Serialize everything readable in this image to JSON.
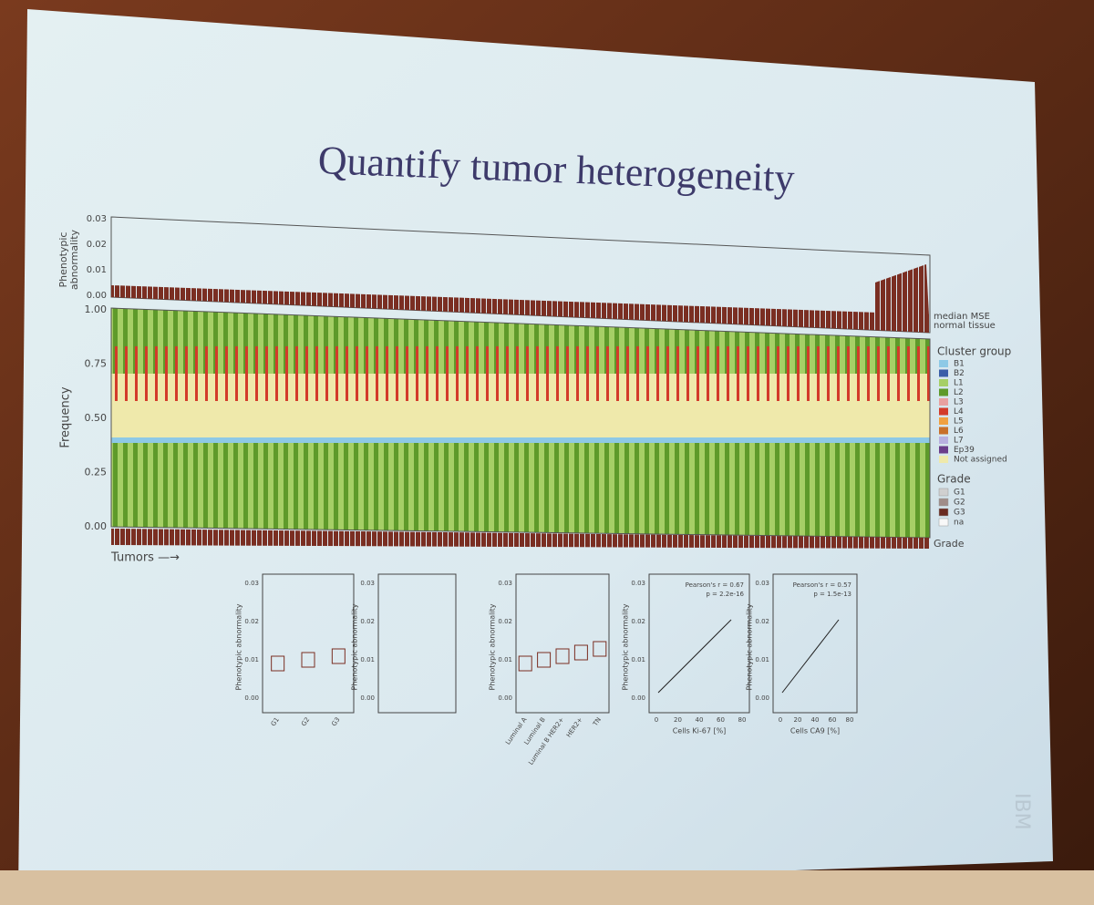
{
  "slide": {
    "title": "Quantify tumor heterogeneity",
    "top_panel": {
      "y_label": [
        "Phenotypic",
        "abnormality"
      ],
      "y_ticks": [
        "0.03",
        "0.02",
        "0.01",
        "0.00"
      ],
      "right_labels": [
        "median MSE",
        "normal tissue"
      ]
    },
    "main_panel": {
      "y_label": "Frequency",
      "y_ticks": [
        "1.00",
        "0.75",
        "0.50",
        "0.25",
        "0.00"
      ],
      "x_label": "Tumors —→",
      "grade_label": "Grade"
    },
    "legend": {
      "cluster_title": "Cluster group",
      "clusters": [
        {
          "label": "B1",
          "color": "#8ec9e6"
        },
        {
          "label": "B2",
          "color": "#3a5ea8"
        },
        {
          "label": "L1",
          "color": "#a6cf66"
        },
        {
          "label": "L2",
          "color": "#5e9a2a"
        },
        {
          "label": "L3",
          "color": "#e8a0a0"
        },
        {
          "label": "L4",
          "color": "#d33b2a"
        },
        {
          "label": "L5",
          "color": "#f0a040"
        },
        {
          "label": "L6",
          "color": "#c8702a"
        },
        {
          "label": "L7",
          "color": "#b8b0e0"
        },
        {
          "label": "Ep39",
          "color": "#6a3d8a"
        },
        {
          "label": "Not assigned",
          "color": "#efe9ab"
        }
      ],
      "grade_title": "Grade",
      "grades": [
        {
          "label": "G1",
          "color": "#d0d0d0"
        },
        {
          "label": "G2",
          "color": "#a08c88"
        },
        {
          "label": "G3",
          "color": "#6a2a20"
        },
        {
          "label": "na",
          "color": "#f8f8f8"
        }
      ]
    },
    "small_plots": [
      {
        "y_label": "Phenotypic abnormality",
        "y_ticks": [
          "0.03",
          "0.02",
          "0.01",
          "0.00"
        ],
        "x_labels": [
          "G1",
          "G2",
          "G3"
        ]
      },
      {
        "y_label": "Phenotypic abnormality",
        "y_ticks": [
          "0.03",
          "0.02",
          "0.01",
          "0.00"
        ],
        "x_labels": []
      },
      {
        "y_label": "Phenotypic abnormality",
        "y_ticks": [
          "0.03",
          "0.02",
          "0.01",
          "0.00"
        ],
        "x_labels": [
          "Luminal A",
          "Luminal B",
          "Luminal B HER2+",
          "HER2+",
          "TN"
        ]
      },
      {
        "y_label": "Phenotypic abnormality",
        "y_ticks": [
          "0.03",
          "0.02",
          "0.01",
          "0.00"
        ],
        "x_label": "Cells Ki-67 [%]",
        "x_ticks": [
          "0",
          "20",
          "40",
          "60",
          "80"
        ],
        "stats": [
          "Pearson's r = 0.67",
          "p = 2.2e-16"
        ]
      },
      {
        "y_label": "Phenotypic abnormality",
        "y_ticks": [
          "0.03",
          "0.02",
          "0.01",
          "0.00"
        ],
        "x_label": "Cells CA9 [%]",
        "x_ticks": [
          "0",
          "20",
          "40",
          "60",
          "80"
        ],
        "stats": [
          "Pearson's r = 0.57",
          "p = 1.5e-13"
        ]
      }
    ],
    "watermark": "IBM"
  }
}
